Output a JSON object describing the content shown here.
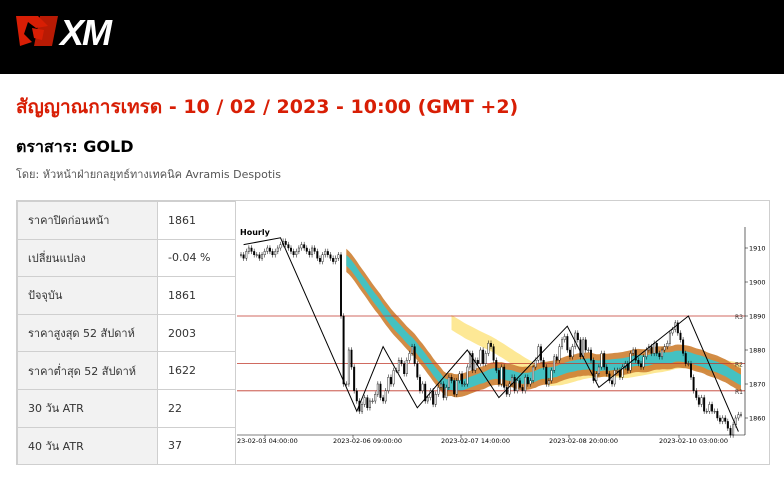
{
  "brand": {
    "logo_text": "XM",
    "color": "#d81e05"
  },
  "page": {
    "title": "สัญญาณการเทรด - 10 / 02 / 2023 - 10:00 (GMT +2)",
    "instrument": "ตราสาร: GOLD",
    "author": "โดย: หัวหน้าฝ่ายกลยุทธ์ทางเทคนิค Avramis Despotis"
  },
  "stats": [
    {
      "label": "ราคาปิดก่อนหน้า",
      "value": "1861"
    },
    {
      "label": "เปลี่ยนแปลง",
      "value": "-0.04 %"
    },
    {
      "label": "ปัจจุบัน",
      "value": "1861"
    },
    {
      "label": "ราคาสูงสุด 52 สัปดาห์",
      "value": "2003"
    },
    {
      "label": "ราคาต่ำสุด 52 สัปดาห์",
      "value": "1622"
    },
    {
      "label": "30 วัน ATR",
      "value": "22"
    },
    {
      "label": "40 วัน ATR",
      "value": "37"
    }
  ],
  "chart_data": {
    "type": "candlestick",
    "timeframe": "Hourly",
    "y_ticks": [
      1860,
      1870,
      1880,
      1890,
      1900,
      1910
    ],
    "ylim": [
      1855,
      1915
    ],
    "x_ticks": [
      "23-02-03 04:00:00",
      "2023-02-06 09:00:00",
      "2023-02-07 14:00:00",
      "2023-02-08 20:00:00",
      "2023-02-10 03:00:00"
    ],
    "levels": [
      {
        "name": "R3",
        "value": 1890
      },
      {
        "name": "R2",
        "value": 1876
      },
      {
        "name": "R1",
        "value": 1868
      }
    ],
    "close": [
      1908,
      1907,
      1909,
      1910,
      1909,
      1908,
      1908,
      1907,
      1908,
      1909,
      1910,
      1909,
      1908,
      1909,
      1910,
      1911,
      1912,
      1911,
      1910,
      1909,
      1908,
      1909,
      1910,
      1911,
      1910,
      1909,
      1908,
      1910,
      1909,
      1907,
      1906,
      1908,
      1909,
      1908,
      1907,
      1906,
      1907,
      1908,
      1890,
      1870,
      1870,
      1880,
      1875,
      1868,
      1865,
      1862,
      1864,
      1866,
      1863,
      1865,
      1865,
      1867,
      1870,
      1866,
      1865,
      1868,
      1872,
      1870,
      1874,
      1874,
      1877,
      1876,
      1873,
      1877,
      1879,
      1881,
      1876,
      1872,
      1868,
      1870,
      1865,
      1866,
      1868,
      1864,
      1867,
      1869,
      1870,
      1866,
      1869,
      1872,
      1871,
      1867,
      1871,
      1873,
      1870,
      1870,
      1875,
      1879,
      1874,
      1877,
      1876,
      1880,
      1876,
      1879,
      1882,
      1881,
      1877,
      1874,
      1870,
      1875,
      1869,
      1867,
      1870,
      1872,
      1868,
      1871,
      1869,
      1868,
      1872,
      1870,
      1871,
      1875,
      1877,
      1881,
      1877,
      1875,
      1870,
      1871,
      1874,
      1878,
      1877,
      1881,
      1883,
      1884,
      1880,
      1878,
      1881,
      1885,
      1883,
      1878,
      1883,
      1880,
      1880,
      1877,
      1871,
      1873,
      1875,
      1879,
      1875,
      1873,
      1871,
      1870,
      1874,
      1874,
      1872,
      1875,
      1876,
      1874,
      1879,
      1880,
      1877,
      1876,
      1875,
      1878,
      1880,
      1881,
      1879,
      1882,
      1879,
      1878,
      1880,
      1881,
      1882,
      1885,
      1886,
      1888,
      1885,
      1883,
      1879,
      1876,
      1876,
      1872,
      1868,
      1866,
      1864,
      1866,
      1862,
      1862,
      1864,
      1862,
      1862,
      1860,
      1859,
      1860,
      1859,
      1857,
      1855,
      1858,
      1860,
      1861,
      1861
    ],
    "zigzag": [
      [
        1,
        1911
      ],
      [
        15,
        1913
      ],
      [
        44,
        1862
      ],
      [
        54,
        1881
      ],
      [
        67,
        1863
      ],
      [
        86,
        1880
      ],
      [
        98,
        1866
      ],
      [
        124,
        1887
      ],
      [
        136,
        1869
      ],
      [
        170,
        1890
      ],
      [
        189,
        1856
      ]
    ]
  }
}
